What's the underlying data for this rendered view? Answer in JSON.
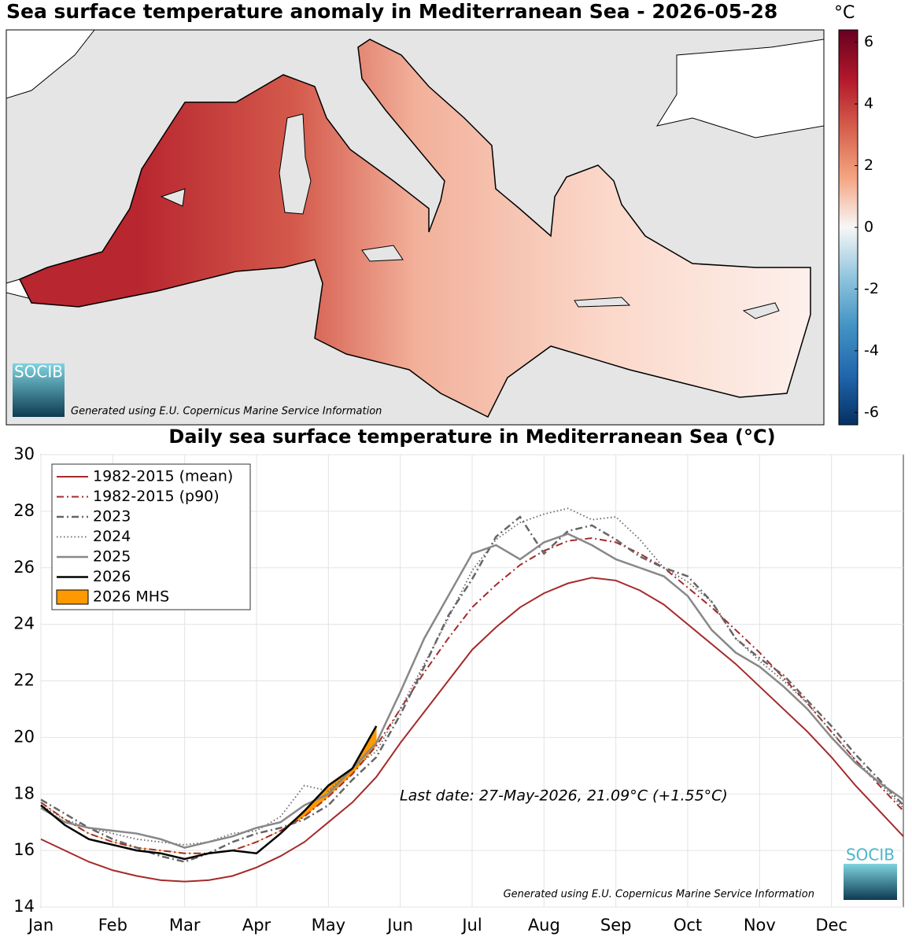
{
  "map": {
    "title": "Sea surface temperature anomaly in Mediterranean Sea - 2026-05-28",
    "colorbar_unit": "°C",
    "colorbar_lim": [
      -6.4,
      6.4
    ],
    "colorbar_ticks": [
      -6,
      -4,
      -2,
      0,
      2,
      4,
      6
    ],
    "colorbar_colors": [
      "#053061",
      "#2166ac",
      "#4393c3",
      "#92c5de",
      "#f7f7f7",
      "#f4a582",
      "#d6604d",
      "#b2182b",
      "#67001f"
    ],
    "credit": "Generated using E.U. Copernicus Marine Service Information",
    "logo": "SOCIB"
  },
  "chart_data": {
    "type": "line",
    "title": "Daily sea surface temperature in Mediterranean Sea (°C)",
    "categories": [
      "Jan",
      null,
      null,
      "Feb",
      null,
      null,
      "Mar",
      null,
      null,
      "Apr",
      null,
      null,
      "May",
      null,
      null,
      "Jun",
      null,
      null,
      "Jul",
      null,
      null,
      "Aug",
      null,
      null,
      "Sep",
      null,
      null,
      "Oct",
      null,
      null,
      "Nov",
      null,
      null,
      "Dec",
      null,
      null,
      null
    ],
    "ylim": [
      14,
      30
    ],
    "yticks": [
      14,
      16,
      18,
      20,
      22,
      24,
      26,
      28,
      30
    ],
    "grid": true,
    "legend": "upper left",
    "series": [
      {
        "name": "1982-2015 (mean)",
        "color": "#a52a2a",
        "style": "solid",
        "values": [
          16.4,
          16.0,
          15.6,
          15.3,
          15.1,
          14.95,
          14.9,
          14.95,
          15.1,
          15.4,
          15.8,
          16.3,
          17.0,
          17.7,
          18.6,
          19.8,
          20.9,
          22.0,
          23.1,
          23.9,
          24.6,
          25.1,
          25.45,
          25.65,
          25.55,
          25.2,
          24.7,
          24.0,
          23.3,
          22.6,
          21.8,
          21.0,
          20.2,
          19.3,
          18.3,
          17.4,
          16.5
        ]
      },
      {
        "name": "1982-2015 (p90)",
        "color": "#a52a2a",
        "style": "dashdot",
        "values": [
          17.7,
          17.1,
          16.6,
          16.3,
          16.1,
          16.0,
          15.9,
          15.9,
          16.0,
          16.3,
          16.7,
          17.2,
          17.9,
          18.7,
          19.7,
          21.0,
          22.3,
          23.5,
          24.6,
          25.4,
          26.1,
          26.6,
          26.95,
          27.05,
          26.9,
          26.5,
          26.0,
          25.3,
          24.6,
          23.8,
          23.0,
          22.1,
          21.2,
          20.2,
          19.2,
          18.3,
          17.4
        ]
      },
      {
        "name": "2023",
        "color": "#666666",
        "style": "dashdot",
        "values": [
          17.8,
          17.3,
          16.8,
          16.4,
          16.1,
          15.8,
          15.6,
          15.9,
          16.3,
          16.6,
          16.8,
          17.1,
          17.6,
          18.5,
          19.3,
          20.8,
          22.5,
          24.3,
          25.6,
          27.1,
          27.8,
          26.5,
          27.3,
          27.5,
          27.0,
          26.4,
          26.0,
          25.7,
          24.8,
          23.5,
          22.8,
          22.2,
          21.3,
          20.4,
          19.4,
          18.5,
          17.6
        ]
      },
      {
        "name": "2024",
        "color": "#666666",
        "style": "dotted",
        "values": [
          17.6,
          17.1,
          16.8,
          16.6,
          16.4,
          16.3,
          16.2,
          16.3,
          16.6,
          16.7,
          17.2,
          18.3,
          18.1,
          18.9,
          19.5,
          21.0,
          22.6,
          24.2,
          25.9,
          27.0,
          27.6,
          27.9,
          28.1,
          27.7,
          27.8,
          27.0,
          26.0,
          25.5,
          24.8,
          23.5,
          22.7,
          22.0,
          21.2,
          20.2,
          19.2,
          18.4,
          17.5
        ]
      },
      {
        "name": "2025",
        "color": "#888888",
        "style": "solid",
        "values": [
          17.5,
          17.0,
          16.8,
          16.7,
          16.6,
          16.4,
          16.1,
          16.3,
          16.5,
          16.8,
          17.0,
          17.6,
          18.0,
          18.9,
          19.8,
          21.6,
          23.5,
          25.0,
          26.5,
          26.8,
          26.3,
          26.9,
          27.2,
          26.8,
          26.3,
          26.0,
          25.7,
          25.0,
          23.8,
          23.0,
          22.5,
          21.8,
          21.0,
          20.0,
          19.1,
          18.4,
          17.8
        ]
      },
      {
        "name": "2026",
        "color": "#000000",
        "style": "solid",
        "values": [
          17.6,
          16.9,
          16.4,
          16.2,
          16.0,
          15.9,
          15.7,
          15.9,
          16.0,
          15.9,
          16.6,
          17.4,
          18.3,
          18.9,
          20.4,
          null,
          null,
          null,
          null,
          null,
          null,
          null,
          null,
          null,
          null,
          null,
          null,
          null,
          null,
          null,
          null,
          null,
          null,
          null,
          null,
          null,
          null
        ]
      },
      {
        "name": "2026 MHS",
        "color": "#ff9900",
        "style": "fill"
      }
    ],
    "annotation": "Last date: 27-May-2026, 21.09°C (+1.55°C)",
    "credit": "Generated using E.U. Copernicus Marine Service Information",
    "logo": "SOCIB"
  }
}
